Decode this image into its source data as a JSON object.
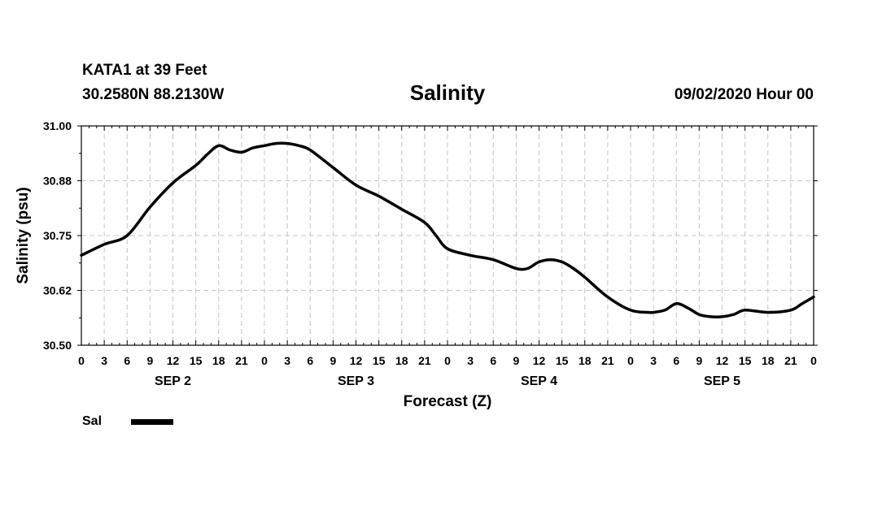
{
  "header": {
    "station": "KATA1 at 39 Feet",
    "coordinates": "30.2580N 88.2130W",
    "title": "Salinity",
    "datetime": "09/02/2020 Hour 00"
  },
  "legend": {
    "label": "Sal",
    "color": "#000000"
  },
  "chart_data": {
    "type": "line",
    "title": "Salinity",
    "xlabel": "Forecast (Z)",
    "ylabel": "Salinity (psu)",
    "ylim": [
      30.5,
      31.0
    ],
    "xlim": [
      0,
      96
    ],
    "x_unit": "hours from 09/02/2020 00Z",
    "y_ticks": [
      "31.00",
      "30.88",
      "30.75",
      "30.62",
      "30.50"
    ],
    "y_tick_values": [
      31.0,
      30.875,
      30.75,
      30.625,
      30.5
    ],
    "x_ticks": [
      "0",
      "3",
      "6",
      "9",
      "12",
      "15",
      "18",
      "21",
      "0",
      "3",
      "6",
      "9",
      "12",
      "15",
      "18",
      "21",
      "0",
      "3",
      "6",
      "9",
      "12",
      "15",
      "18",
      "21",
      "0",
      "3",
      "6",
      "9",
      "12",
      "15",
      "18",
      "21",
      "0"
    ],
    "x_tick_values": [
      0,
      3,
      6,
      9,
      12,
      15,
      18,
      21,
      24,
      27,
      30,
      33,
      36,
      39,
      42,
      45,
      48,
      51,
      54,
      57,
      60,
      63,
      66,
      69,
      72,
      75,
      78,
      81,
      84,
      87,
      90,
      93,
      96
    ],
    "day_labels": [
      {
        "label": "SEP 2",
        "hour": 12
      },
      {
        "label": "SEP 3",
        "hour": 36
      },
      {
        "label": "SEP 4",
        "hour": 60
      },
      {
        "label": "SEP 5",
        "hour": 84
      }
    ],
    "grid": true,
    "series": [
      {
        "name": "Sal",
        "color": "#000000",
        "x": [
          0,
          3,
          6,
          9,
          12,
          15,
          16.5,
          18,
          19.5,
          21,
          22.5,
          24,
          25.5,
          27,
          28.5,
          30,
          33,
          36,
          39,
          42,
          45,
          46.5,
          48,
          51,
          54,
          57,
          58.5,
          60,
          61.5,
          63,
          64.5,
          66,
          69,
          72,
          74.25,
          75,
          76.5,
          78,
          79.5,
          81,
          82.5,
          84,
          85.5,
          87,
          90,
          93,
          94.5,
          96
        ],
        "y": [
          30.705,
          30.73,
          30.75,
          30.815,
          30.87,
          30.91,
          30.935,
          30.955,
          30.945,
          30.94,
          30.95,
          30.955,
          30.96,
          30.96,
          30.955,
          30.945,
          30.905,
          30.865,
          30.84,
          30.81,
          30.78,
          30.75,
          30.72,
          30.705,
          30.695,
          30.675,
          30.675,
          30.69,
          30.695,
          30.69,
          30.675,
          30.655,
          30.61,
          30.58,
          30.575,
          30.575,
          30.58,
          30.595,
          30.585,
          30.57,
          30.565,
          30.565,
          30.57,
          30.58,
          30.575,
          30.58,
          30.595,
          30.61
        ]
      }
    ]
  }
}
